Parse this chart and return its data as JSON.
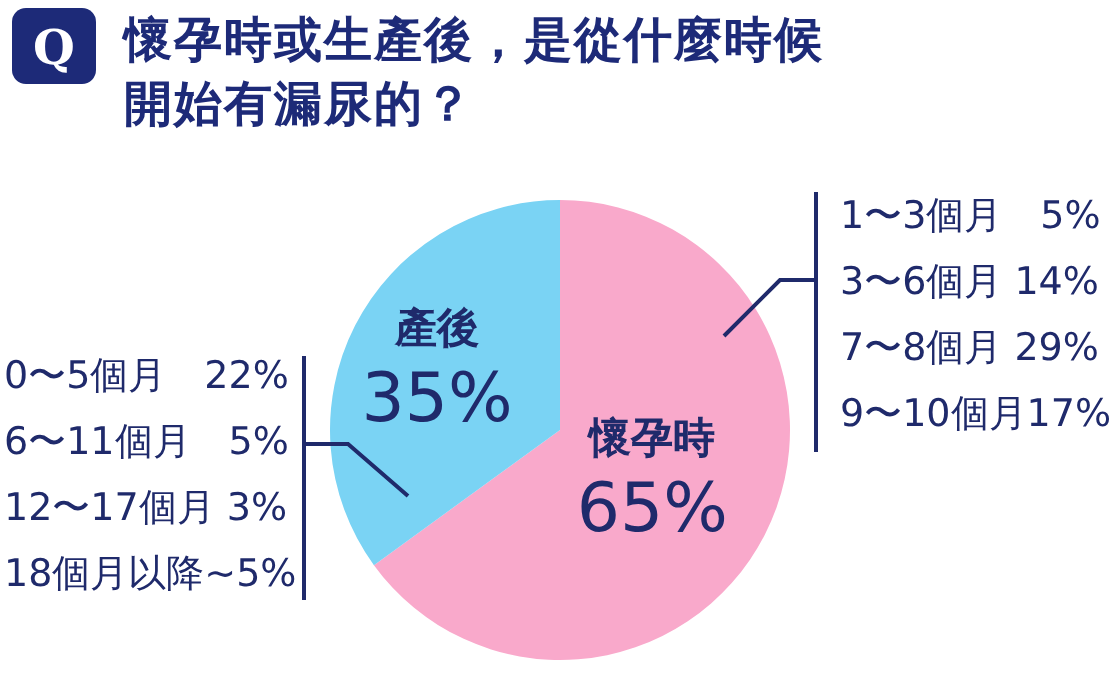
{
  "chart_data": {
    "type": "pie",
    "title": "懷孕時或生產後，是從什麼時候開始有漏尿的？",
    "categories": [
      "懷孕時",
      "產後"
    ],
    "values": [
      65,
      35
    ],
    "colors": [
      "#f9a9cb",
      "#7ad3f4"
    ],
    "value_labels": [
      "65%",
      "35%"
    ],
    "legend": false,
    "annotations": [
      "Q",
      "1〜3個月　5%",
      "3〜6個月 14%",
      "7〜8個月 29%",
      "9〜10個月17%",
      "0〜5個月　22%",
      "6〜11個月　5%",
      "12〜17個月 3%",
      "18個月以降~5%"
    ]
  }
}
